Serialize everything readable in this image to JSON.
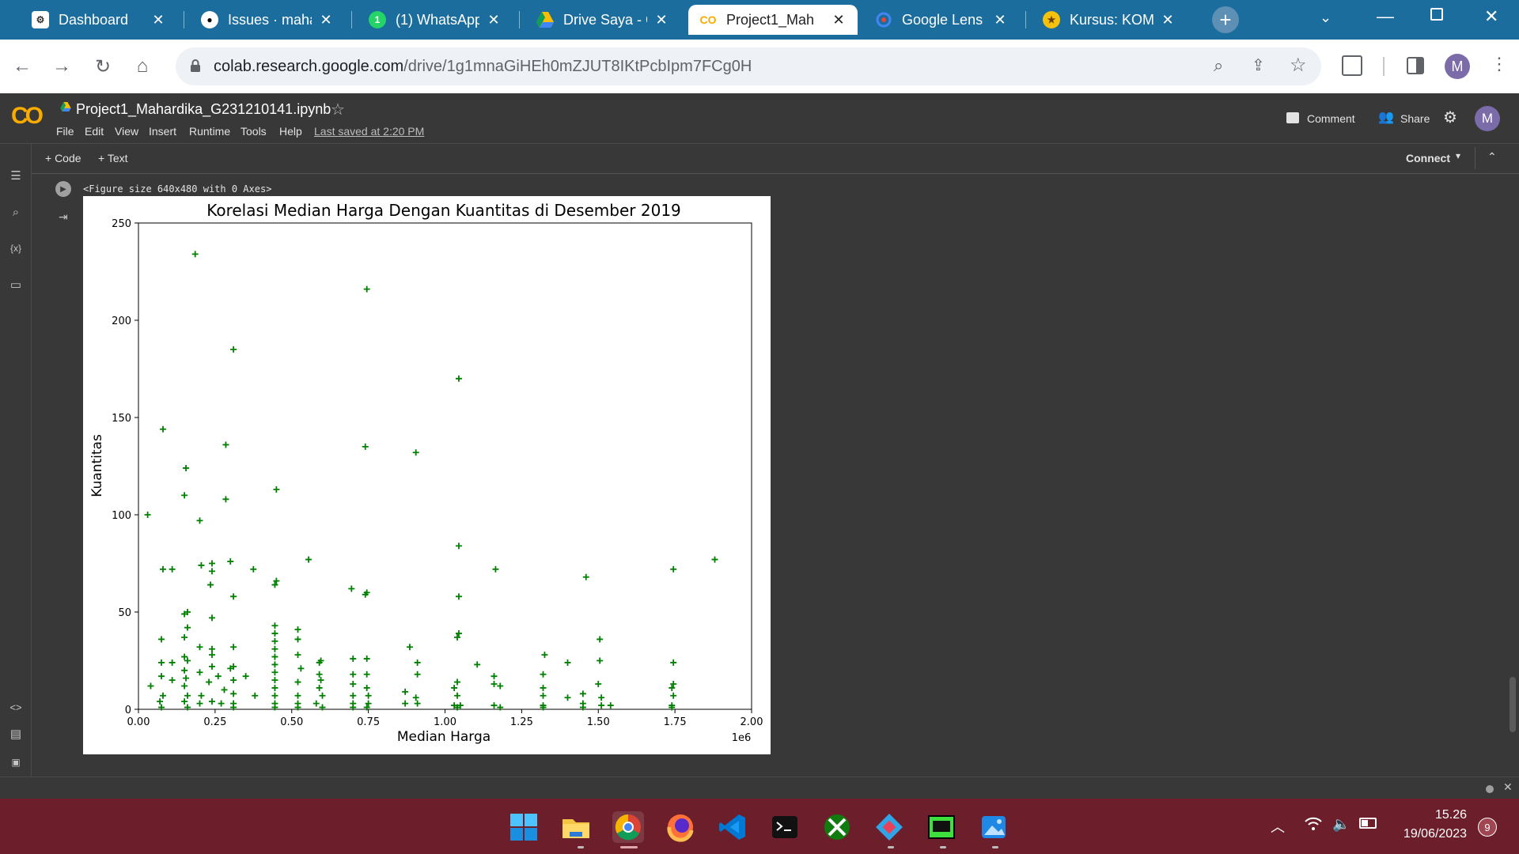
{
  "browser": {
    "tabs": [
      {
        "title": "Dashboard",
        "icon": "moodle-icon"
      },
      {
        "title": "Issues · maha",
        "icon": "github-icon"
      },
      {
        "title": "(1) WhatsApp",
        "icon": "whatsapp-icon"
      },
      {
        "title": "Drive Saya - G",
        "icon": "drive-icon"
      },
      {
        "title": "Project1_Mah",
        "icon": "colab-icon"
      },
      {
        "title": "Google Lens",
        "icon": "lens-icon"
      },
      {
        "title": "Kursus: KOM",
        "icon": "kursus-icon"
      }
    ],
    "url_host": "colab.research.google.com",
    "url_path": "/drive/1g1mnaGiHEh0mZJUT8IKtPcbIpm7FCg0H",
    "profile_initial": "M"
  },
  "colab": {
    "logo": "CO",
    "notebook_name": "Project1_Mahardika_G231210141.ipynb",
    "menu": [
      "File",
      "Edit",
      "View",
      "Insert",
      "Runtime",
      "Tools",
      "Help"
    ],
    "last_saved": "Last saved at 2:20 PM",
    "comment_label": "Comment",
    "share_label": "Share",
    "avatar": "M",
    "add_code": "+ Code",
    "add_text": "+ Text",
    "connect_label": "Connect",
    "output_text": "<Figure size 640x480 with 0 Axes>"
  },
  "chart_data": {
    "type": "scatter",
    "title": "Korelasi Median Harga Dengan Kuantitas di  Desember 2019",
    "xlabel": "Median Harga",
    "ylabel": "Kuantitas",
    "x_offset_label": "1e6",
    "xlim": [
      0,
      2000000
    ],
    "ylim": [
      0,
      250
    ],
    "xticks": [
      "0.00",
      "0.25",
      "0.50",
      "0.75",
      "1.00",
      "1.25",
      "1.50",
      "1.75",
      "2.00"
    ],
    "yticks": [
      "0",
      "50",
      "100",
      "150",
      "200",
      "250"
    ],
    "marker": "+",
    "color": "#008000",
    "points": [
      [
        185000,
        234
      ],
      [
        745000,
        216
      ],
      [
        310000,
        185
      ],
      [
        1045000,
        170
      ],
      [
        80000,
        144
      ],
      [
        285000,
        136
      ],
      [
        740000,
        135
      ],
      [
        905000,
        132
      ],
      [
        155000,
        124
      ],
      [
        450000,
        113
      ],
      [
        150000,
        110
      ],
      [
        285000,
        108
      ],
      [
        30000,
        100
      ],
      [
        200000,
        97
      ],
      [
        1045000,
        84
      ],
      [
        555000,
        77
      ],
      [
        1880000,
        77
      ],
      [
        300000,
        76
      ],
      [
        240000,
        75
      ],
      [
        205000,
        74
      ],
      [
        80000,
        72
      ],
      [
        110000,
        72
      ],
      [
        375000,
        72
      ],
      [
        1165000,
        72
      ],
      [
        1745000,
        72
      ],
      [
        240000,
        71
      ],
      [
        1460000,
        68
      ],
      [
        450000,
        66
      ],
      [
        445000,
        64
      ],
      [
        235000,
        64
      ],
      [
        695000,
        62
      ],
      [
        745000,
        60
      ],
      [
        740000,
        59
      ],
      [
        310000,
        58
      ],
      [
        1045000,
        58
      ],
      [
        160000,
        50
      ],
      [
        150000,
        49
      ],
      [
        240000,
        47
      ],
      [
        160000,
        42
      ],
      [
        445000,
        43
      ],
      [
        520000,
        41
      ],
      [
        445000,
        39
      ],
      [
        1045000,
        39
      ],
      [
        150000,
        37
      ],
      [
        75000,
        36
      ],
      [
        520000,
        36
      ],
      [
        445000,
        35
      ],
      [
        1505000,
        36
      ],
      [
        1040000,
        37
      ],
      [
        885000,
        32
      ],
      [
        200000,
        32
      ],
      [
        310000,
        32
      ],
      [
        240000,
        31
      ],
      [
        445000,
        31
      ],
      [
        595000,
        25
      ],
      [
        520000,
        28
      ],
      [
        445000,
        27
      ],
      [
        1325000,
        28
      ],
      [
        240000,
        28
      ],
      [
        150000,
        27
      ],
      [
        160000,
        25
      ],
      [
        75000,
        24
      ],
      [
        110000,
        24
      ],
      [
        700000,
        26
      ],
      [
        745000,
        26
      ],
      [
        1505000,
        25
      ],
      [
        590000,
        24
      ],
      [
        910000,
        24
      ],
      [
        1400000,
        24
      ],
      [
        1745000,
        24
      ],
      [
        1105000,
        23
      ],
      [
        240000,
        22
      ],
      [
        310000,
        22
      ],
      [
        300000,
        21
      ],
      [
        445000,
        23
      ],
      [
        530000,
        21
      ],
      [
        150000,
        20
      ],
      [
        200000,
        19
      ],
      [
        445000,
        19
      ],
      [
        590000,
        18
      ],
      [
        745000,
        18
      ],
      [
        75000,
        17
      ],
      [
        260000,
        17
      ],
      [
        350000,
        17
      ],
      [
        700000,
        18
      ],
      [
        910000,
        18
      ],
      [
        1320000,
        18
      ],
      [
        1160000,
        17
      ],
      [
        110000,
        15
      ],
      [
        155000,
        16
      ],
      [
        230000,
        14
      ],
      [
        310000,
        15
      ],
      [
        445000,
        15
      ],
      [
        520000,
        14
      ],
      [
        595000,
        15
      ],
      [
        1040000,
        14
      ],
      [
        1160000,
        13
      ],
      [
        1500000,
        13
      ],
      [
        1745000,
        13
      ],
      [
        40000,
        12
      ],
      [
        150000,
        12
      ],
      [
        280000,
        10
      ],
      [
        445000,
        11
      ],
      [
        590000,
        11
      ],
      [
        700000,
        13
      ],
      [
        745000,
        11
      ],
      [
        870000,
        9
      ],
      [
        1030000,
        11
      ],
      [
        1180000,
        12
      ],
      [
        1320000,
        11
      ],
      [
        1740000,
        11
      ],
      [
        1450000,
        8
      ],
      [
        80000,
        7
      ],
      [
        160000,
        7
      ],
      [
        205000,
        7
      ],
      [
        310000,
        8
      ],
      [
        380000,
        7
      ],
      [
        445000,
        7
      ],
      [
        520000,
        7
      ],
      [
        600000,
        7
      ],
      [
        700000,
        7
      ],
      [
        750000,
        7
      ],
      [
        905000,
        6
      ],
      [
        1040000,
        7
      ],
      [
        1320000,
        7
      ],
      [
        1400000,
        6
      ],
      [
        1510000,
        6
      ],
      [
        1745000,
        7
      ],
      [
        70000,
        4
      ],
      [
        150000,
        4
      ],
      [
        200000,
        3
      ],
      [
        240000,
        4
      ],
      [
        270000,
        3
      ],
      [
        310000,
        3
      ],
      [
        445000,
        3
      ],
      [
        520000,
        3
      ],
      [
        580000,
        3
      ],
      [
        700000,
        3
      ],
      [
        750000,
        3
      ],
      [
        870000,
        3
      ],
      [
        910000,
        3
      ],
      [
        1030000,
        2
      ],
      [
        1050000,
        2
      ],
      [
        1160000,
        2
      ],
      [
        1180000,
        1
      ],
      [
        1320000,
        2
      ],
      [
        1450000,
        3
      ],
      [
        1510000,
        2
      ],
      [
        1540000,
        2
      ],
      [
        1740000,
        2
      ],
      [
        75000,
        1
      ],
      [
        160000,
        1
      ],
      [
        310000,
        1
      ],
      [
        445000,
        1
      ],
      [
        520000,
        1
      ],
      [
        600000,
        1
      ],
      [
        700000,
        1
      ],
      [
        745000,
        1
      ],
      [
        1040000,
        1
      ],
      [
        1320000,
        1
      ],
      [
        1450000,
        1
      ],
      [
        1740000,
        1
      ]
    ]
  },
  "taskbar": {
    "time": "15.26",
    "date": "19/06/2023",
    "notif_count": "9"
  }
}
